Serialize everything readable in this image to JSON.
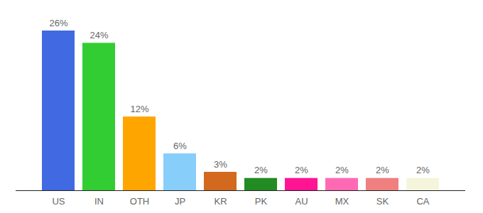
{
  "chart_data": {
    "type": "bar",
    "categories": [
      "US",
      "IN",
      "OTH",
      "JP",
      "KR",
      "PK",
      "AU",
      "MX",
      "SK",
      "CA"
    ],
    "values": [
      26,
      24,
      12,
      6,
      3,
      2,
      2,
      2,
      2,
      2
    ],
    "value_labels": [
      "26%",
      "24%",
      "12%",
      "6%",
      "3%",
      "2%",
      "2%",
      "2%",
      "2%",
      "2%"
    ],
    "colors": [
      "#4169e1",
      "#32cd32",
      "#ffa500",
      "#87cefa",
      "#d2691e",
      "#228b22",
      "#ff1493",
      "#ff69b4",
      "#f08080",
      "#f5f5dc"
    ],
    "data_labels": true,
    "tick_labels": "x"
  }
}
